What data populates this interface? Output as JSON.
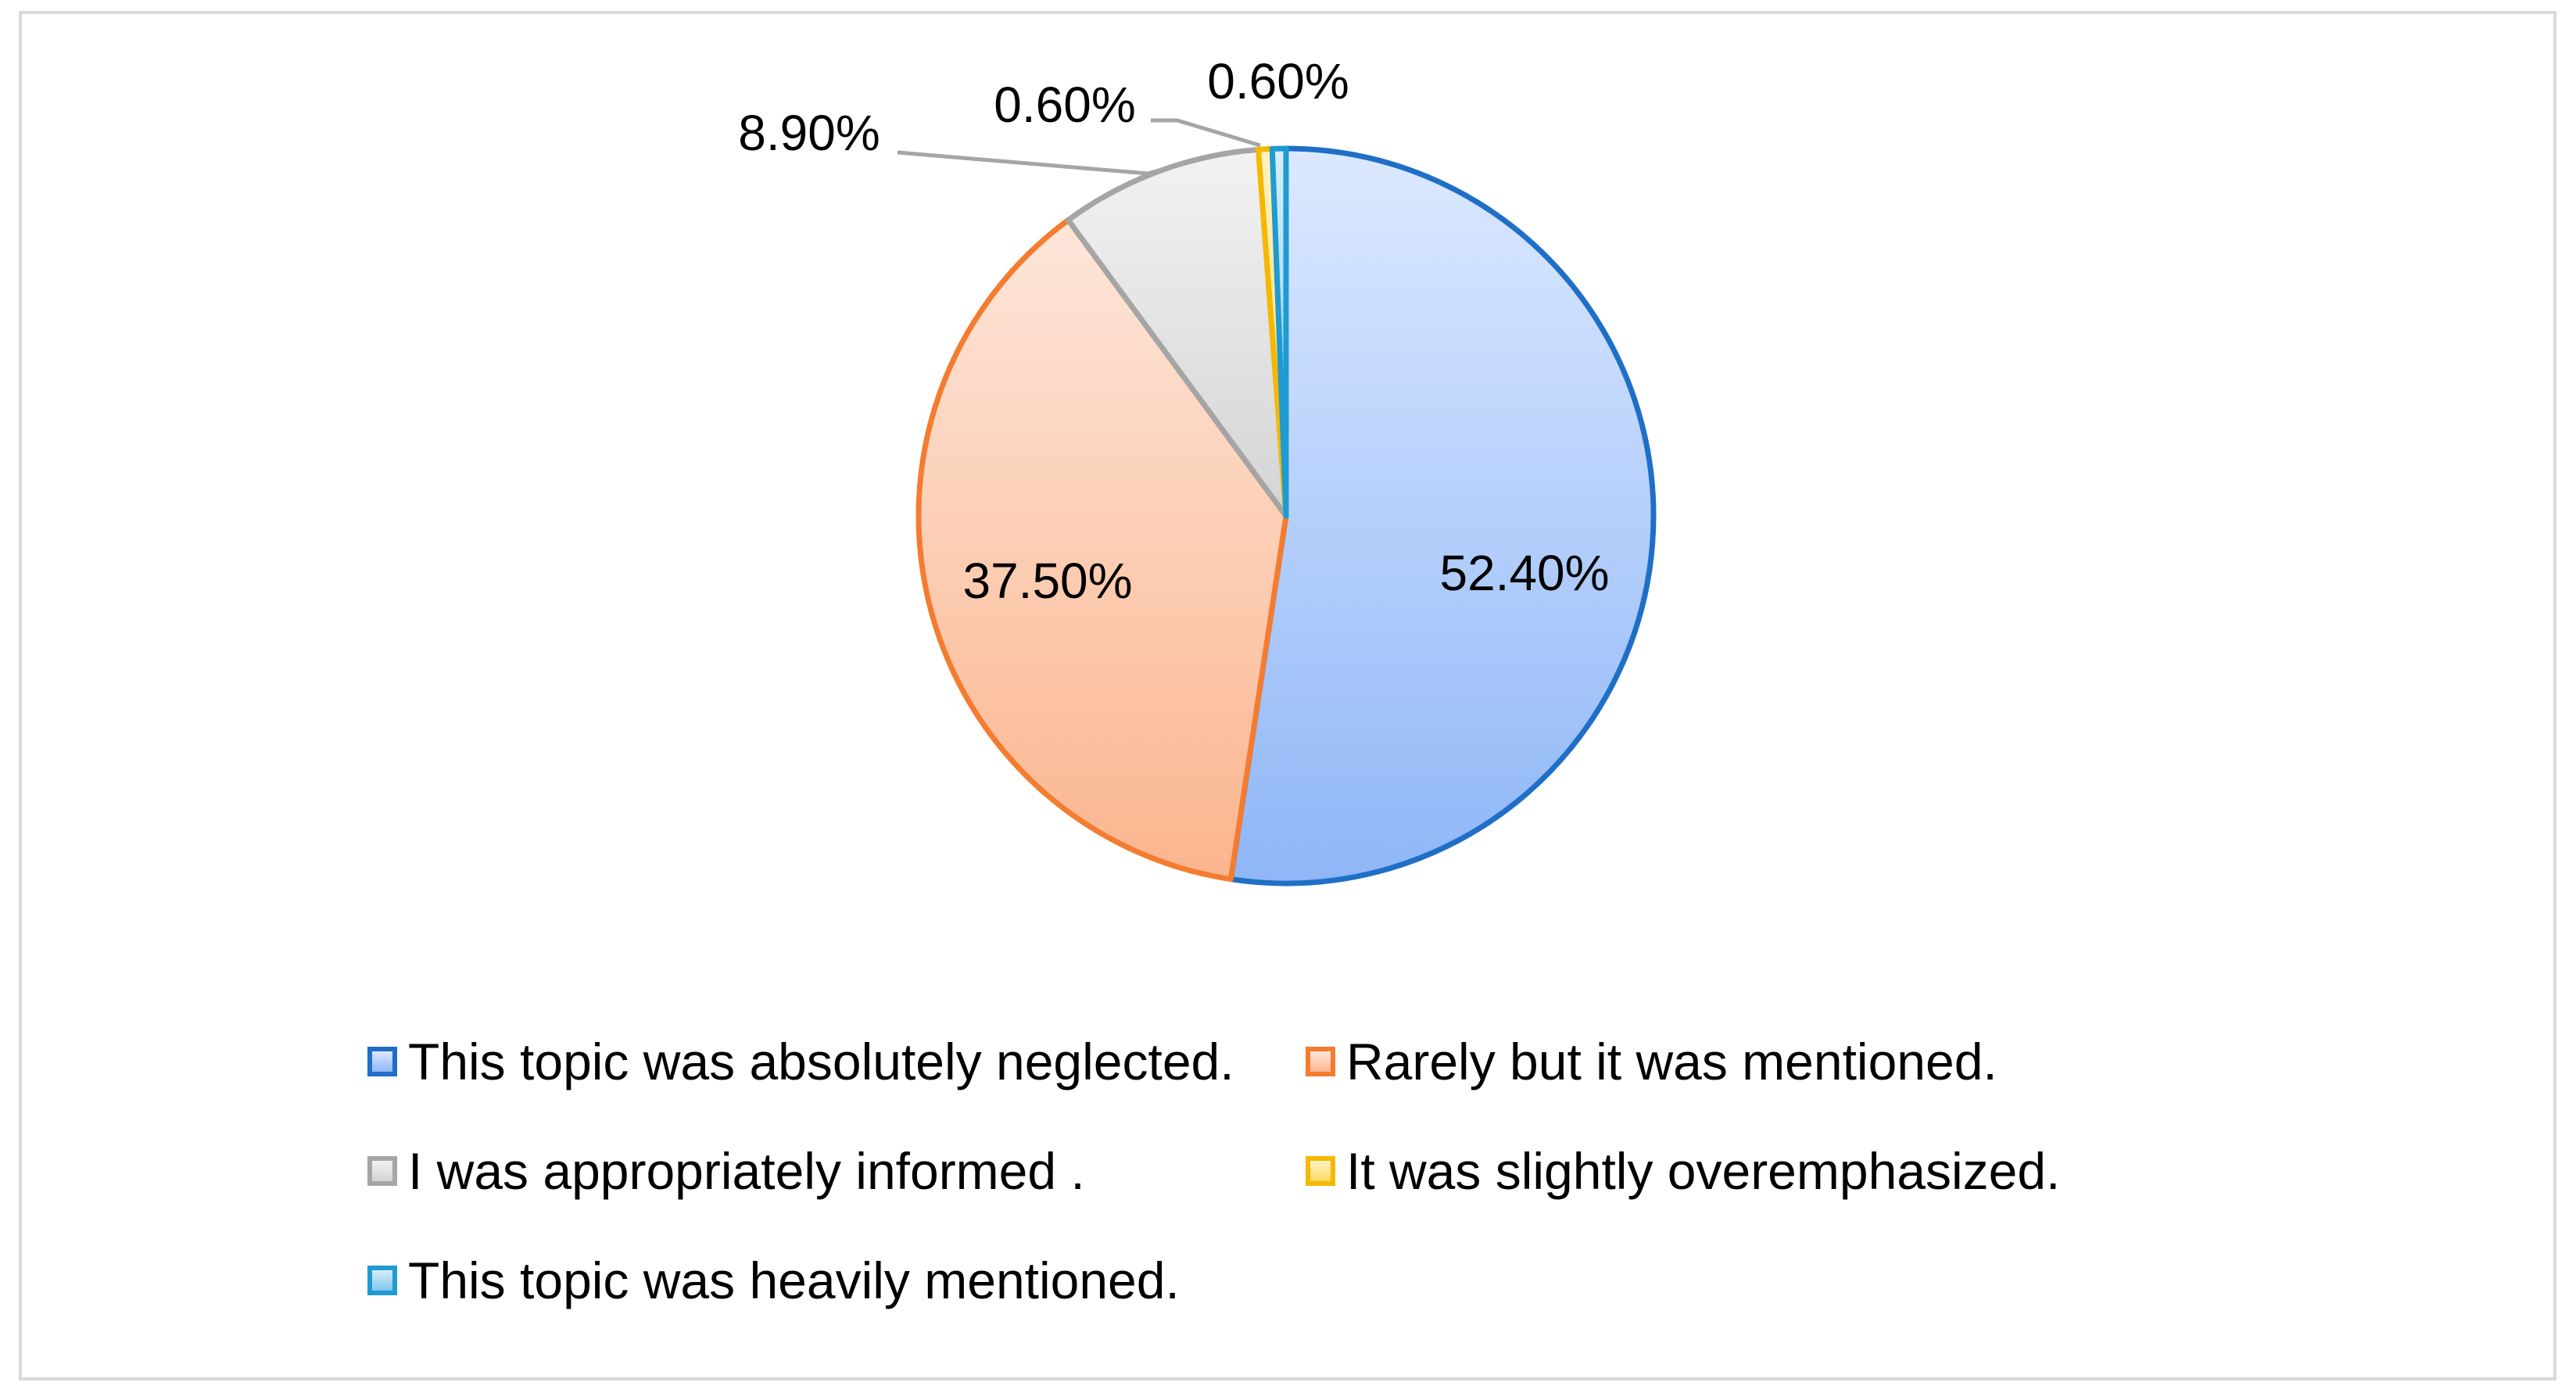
{
  "chart_data": {
    "type": "pie",
    "title": "",
    "slices": [
      {
        "label": "This topic was absolutely neglected.",
        "value": 52.4,
        "display": "52.40%",
        "fill_light": "#dce9ff",
        "fill_dark": "#8fb6f7",
        "stroke": "#1f6fc6"
      },
      {
        "label": "Rarely but it was mentioned.",
        "value": 37.5,
        "display": "37.50%",
        "fill_light": "#fde6da",
        "fill_dark": "#fbb58e",
        "stroke": "#f47c30"
      },
      {
        "label": "I was appropriately informed .",
        "value": 8.9,
        "display": "8.90%",
        "fill_light": "#f2f2f2",
        "fill_dark": "#d4d4d4",
        "stroke": "#a5a5a5"
      },
      {
        "label": "It was slightly overemphasized.",
        "value": 0.6,
        "display": "0.60%",
        "fill_light": "#fff3c4",
        "fill_dark": "#ffd966",
        "stroke": "#f5b800"
      },
      {
        "label": "This topic was heavily mentioned.",
        "value": 0.6,
        "display": "0.60%",
        "fill_light": "#d6eefa",
        "fill_dark": "#7fc6ea",
        "stroke": "#1f9bd1"
      }
    ],
    "legend_position": "bottom",
    "label_colors": {
      "text": "#000000",
      "leader_line": "#a5a5a5",
      "frame": "#d9d9d9"
    }
  }
}
